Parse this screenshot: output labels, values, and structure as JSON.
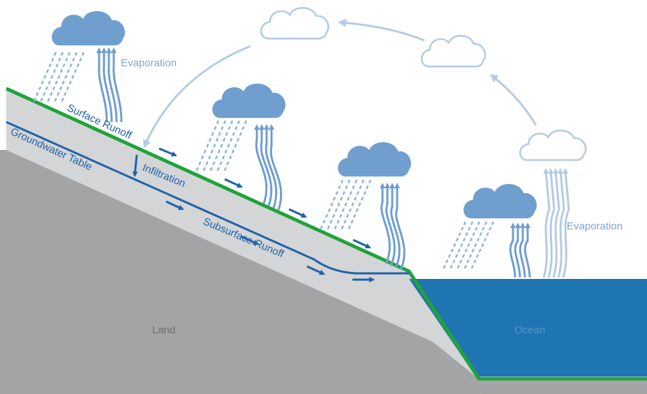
{
  "labels": {
    "evaporation_land": "Evaporation",
    "evaporation_ocean": "Evaporation",
    "surface_runoff": "Surface Runoff",
    "groundwater_table": "Groundwater Table",
    "infiltration": "Infiltration",
    "subsurface_runoff": "Subsurface Runoff",
    "land": "Land",
    "ocean": "Ocean"
  },
  "colors": {
    "surface_line": "#1fa33b",
    "water_flow": "#1e63a8",
    "ocean": "#1f74b2",
    "soil_upper": "#d4d5d7",
    "soil_lower": "#a3a4a6",
    "cloud_filled": "#6f9ecf",
    "cloud_outline": "#b5cbe4",
    "rain": "#8eb3da",
    "evap_light": "#b5cbe4",
    "label_light": "#7fa6d3"
  },
  "icons": [
    "cloud-icon",
    "rain-icon",
    "evaporation-icon",
    "arrow-icon"
  ]
}
